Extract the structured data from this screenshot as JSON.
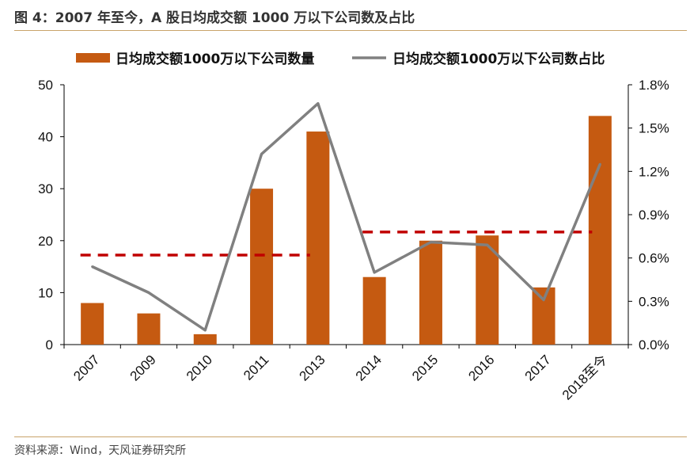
{
  "figure": {
    "title": "图 4：2007 年至今，A 股日均成交额 1000 万以下公司数及占比",
    "source": "资料来源：Wind，天风证券研究所"
  },
  "colors": {
    "bar": "#C55A11",
    "line": "#808080",
    "dashed": "#C00000",
    "rule": "#C9A36A"
  },
  "chart_data": {
    "type": "bar",
    "categories": [
      "2007",
      "2009",
      "2010",
      "2011",
      "2013",
      "2014",
      "2015",
      "2016",
      "2017",
      "2018至今"
    ],
    "series": [
      {
        "name": "日均成交额1000万以下公司数量",
        "type": "bar",
        "axis": "left",
        "values": [
          8,
          6,
          2,
          30,
          41,
          13,
          20,
          21,
          11,
          44
        ]
      },
      {
        "name": "日均成交额1000万以下公司数占比",
        "type": "line",
        "axis": "right",
        "values": [
          0.54,
          0.36,
          0.1,
          1.32,
          1.67,
          0.5,
          0.71,
          0.69,
          0.31,
          1.25
        ]
      }
    ],
    "reference_lines": [
      {
        "from": "2007",
        "to": "2013",
        "value": 0.62,
        "axis": "right",
        "style": "dashed"
      },
      {
        "from": "2014",
        "to": "2018至今",
        "value": 0.78,
        "axis": "right",
        "style": "dashed"
      }
    ],
    "y_left": {
      "ylim": [
        0,
        50
      ],
      "ticks": [
        "0",
        "10",
        "20",
        "30",
        "40",
        "50"
      ]
    },
    "y_right": {
      "ylim": [
        0,
        1.8
      ],
      "ticks": [
        "0.0%",
        "0.3%",
        "0.6%",
        "0.9%",
        "1.2%",
        "1.5%",
        "1.8%"
      ]
    },
    "legend": {
      "position": "top"
    },
    "grid": false
  }
}
